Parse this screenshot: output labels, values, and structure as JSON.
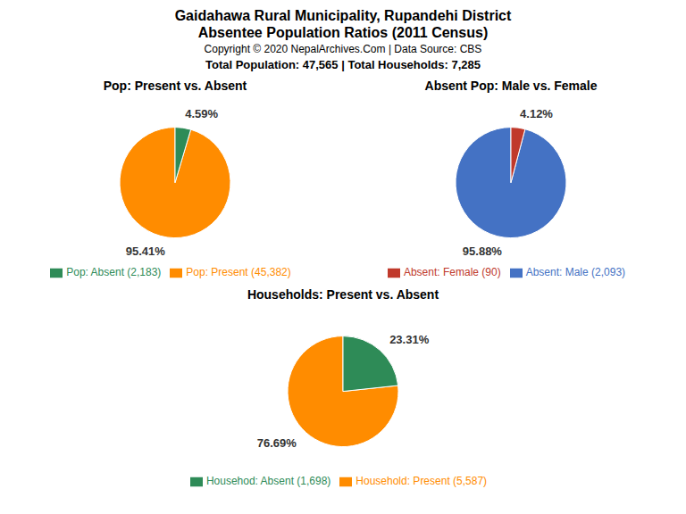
{
  "title": "Gaidahawa Rural Municipality, Rupandehi District",
  "subtitle": "Absentee Population Ratios (2011 Census)",
  "annotations": [
    "Copyright © 2020 NepalArchives.Com | Data Source: CBS",
    "Total Population: 47,565 | Total Households: 7,285"
  ],
  "chart_data": [
    {
      "type": "pie",
      "title": "Pop: Present vs. Absent",
      "categories": [
        "Pop: Present (45,382)",
        "Pop: Absent (2,183)"
      ],
      "values": [
        95.41,
        4.59
      ],
      "value_labels": [
        "95.41%",
        "4.59%"
      ],
      "colors": [
        "#FF8C00",
        "#2E8B57"
      ],
      "data_labels": true,
      "legend": "bottom"
    },
    {
      "type": "pie",
      "title": "Absent Pop: Male vs. Female",
      "categories": [
        "Absent: Male (2,093)",
        "Absent: Female (90)"
      ],
      "values": [
        95.88,
        4.12
      ],
      "value_labels": [
        "95.88%",
        "4.12%"
      ],
      "colors": [
        "#4472C4",
        "#C0392B"
      ],
      "data_labels": true,
      "legend": "bottom"
    },
    {
      "type": "pie",
      "title": "Households: Present vs. Absent",
      "categories": [
        "Household: Present (5,587)",
        "Househod: Absent (1,698)"
      ],
      "values": [
        76.69,
        23.31
      ],
      "value_labels": [
        "76.69%",
        "23.31%"
      ],
      "colors": [
        "#FF8C00",
        "#2E8B57"
      ],
      "data_labels": true,
      "legend": "bottom"
    }
  ]
}
